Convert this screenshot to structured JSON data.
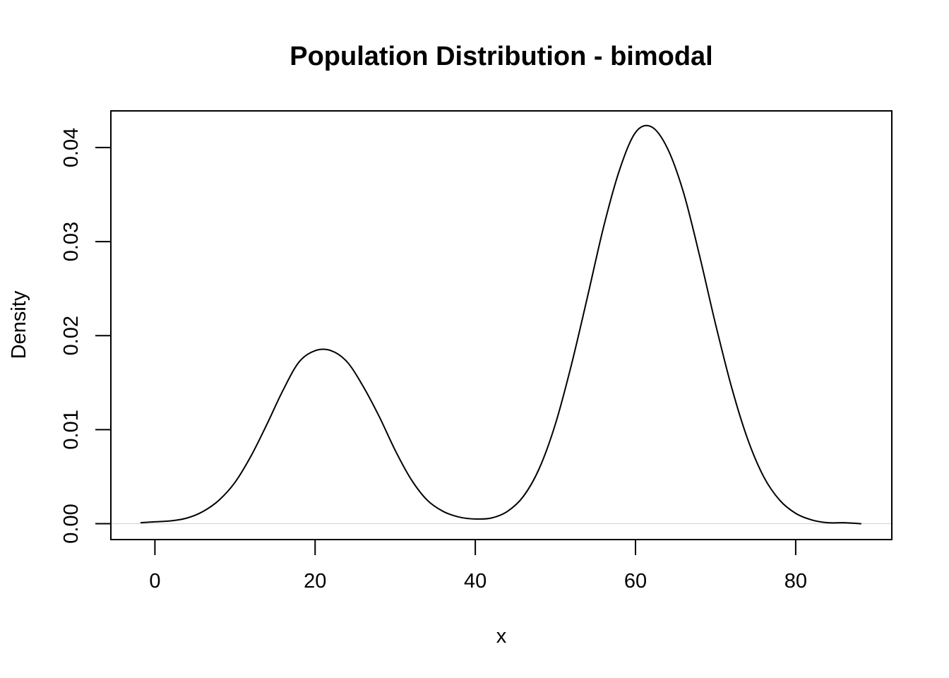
{
  "chart_data": {
    "type": "line",
    "title": "Population Distribution - bimodal",
    "xlabel": "x",
    "ylabel": "Density",
    "xlim": [
      -5.5,
      92.0
    ],
    "ylim": [
      -0.00169,
      0.0439
    ],
    "x_ticks": [
      0,
      20,
      40,
      60,
      80
    ],
    "x_tick_labels": [
      "0",
      "20",
      "40",
      "60",
      "80"
    ],
    "y_ticks": [
      0.0,
      0.01,
      0.02,
      0.03,
      0.04
    ],
    "y_tick_labels": [
      "0.00",
      "0.01",
      "0.02",
      "0.03",
      "0.04"
    ],
    "baseline": 0,
    "grid": false,
    "line_color": "#000000",
    "baseline_color": "#d3d3d3",
    "series": [
      {
        "x": [
          -1.8,
          0,
          2,
          4,
          6,
          8,
          10,
          12,
          14,
          16,
          18,
          20,
          22,
          24,
          26,
          28,
          30,
          32,
          34,
          36,
          38,
          40,
          42,
          44,
          46,
          48,
          50,
          52,
          54,
          56,
          58,
          60,
          62,
          64,
          66,
          68,
          70,
          72,
          74,
          76,
          78,
          80,
          82,
          84,
          86,
          88.2
        ],
        "values": [
          0.0001,
          0.0002,
          0.0003,
          0.0006,
          0.0013,
          0.0025,
          0.0044,
          0.0072,
          0.0106,
          0.0142,
          0.0172,
          0.0184,
          0.0184,
          0.0172,
          0.0146,
          0.0114,
          0.0078,
          0.0047,
          0.0025,
          0.0013,
          0.0007,
          0.0005,
          0.0006,
          0.0013,
          0.0029,
          0.0059,
          0.0106,
          0.0169,
          0.0241,
          0.0315,
          0.0376,
          0.0416,
          0.0422,
          0.0399,
          0.0352,
          0.0285,
          0.0212,
          0.0145,
          0.009,
          0.005,
          0.0025,
          0.0011,
          0.0004,
          0.0001,
          0.0001,
          0.0
        ]
      }
    ]
  }
}
